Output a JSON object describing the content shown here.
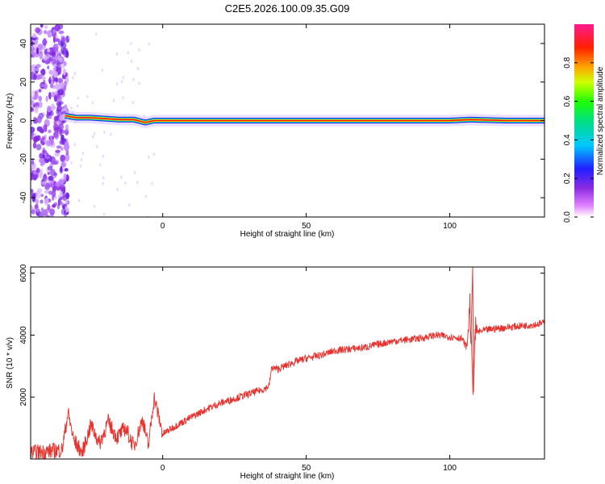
{
  "figure": {
    "title": "C2E5.2026.100.09.35.G09"
  },
  "chart_data": [
    {
      "type": "heatmap",
      "xlabel": "Height of straight line (km)",
      "ylabel": "Frequency (Hz)",
      "xlim": [
        -46,
        133
      ],
      "ylim": [
        -50,
        50
      ],
      "xticks": [
        0,
        50,
        100
      ],
      "yticks": [
        -40,
        -20,
        0,
        20,
        40
      ],
      "grid": false,
      "colorbar": {
        "label": "Normalized spectral amplitude",
        "range": [
          0,
          1
        ],
        "ticks": [
          0.0,
          0.2,
          0.4,
          0.6,
          0.8
        ],
        "colormap": "rainbow: white-magenta-violet-blue-cyan-green-yellow-orange-red-pink",
        "position": "right"
      },
      "ridge": {
        "description": "dominant spectral line near 0 Hz",
        "x": [
          -34,
          -30,
          -25,
          -20,
          -15,
          -10,
          -6,
          -3,
          0,
          5,
          20,
          50,
          80,
          100,
          107,
          120,
          133
        ],
        "frequency_hz": [
          2.5,
          1.5,
          1.5,
          1.0,
          0.5,
          0.5,
          -1.0,
          0.0,
          0.0,
          0.0,
          0.0,
          0.0,
          0.0,
          0.0,
          0.5,
          0.0,
          0.0
        ],
        "amplitude": [
          0.35,
          0.45,
          0.5,
          0.55,
          0.6,
          0.65,
          0.5,
          0.7,
          0.8,
          0.95,
          1.0,
          1.0,
          0.95,
          0.95,
          0.7,
          1.0,
          1.0
        ]
      },
      "noise_region": {
        "description": "broadband low-amplitude noise at low heights",
        "x_range": [
          -46,
          -33
        ],
        "amplitude": 0.2
      },
      "colors": {
        "ridge_core": "#ff1a1a",
        "noise": "#8a2be2"
      }
    },
    {
      "type": "line",
      "xlabel": "Height of straight line (km)",
      "ylabel": "SNR (10 * v/v)",
      "xlim": [
        -46,
        133
      ],
      "ylim": [
        0,
        6200
      ],
      "xticks": [
        0,
        50,
        100
      ],
      "yticks": [
        2000,
        4000,
        6000
      ],
      "grid": false,
      "series": [
        {
          "color": "#e8302c",
          "x": [
            -46,
            -40,
            -35,
            -33,
            -31,
            -28,
            -25,
            -22,
            -19,
            -16,
            -13,
            -10,
            -7,
            -5,
            -3,
            0,
            5,
            10,
            15,
            20,
            25,
            30,
            35,
            37,
            38,
            40,
            45,
            50,
            55,
            60,
            65,
            70,
            75,
            80,
            85,
            90,
            95,
            100,
            104,
            106,
            107,
            108,
            109,
            110,
            112,
            115,
            120,
            125,
            130,
            133
          ],
          "y": [
            200,
            250,
            300,
            1500,
            600,
            200,
            1100,
            500,
            1200,
            700,
            1000,
            400,
            1300,
            400,
            2000,
            800,
            1100,
            1350,
            1600,
            1800,
            1950,
            2100,
            2250,
            2350,
            2950,
            2900,
            3100,
            3250,
            3350,
            3500,
            3550,
            3600,
            3700,
            3800,
            3850,
            3900,
            4000,
            3950,
            3900,
            3600,
            5000,
            2300,
            4200,
            4100,
            4150,
            4200,
            4250,
            4300,
            4350,
            4400
          ],
          "spike": {
            "x": 108,
            "max": 6200,
            "min": 2150
          }
        }
      ]
    }
  ]
}
